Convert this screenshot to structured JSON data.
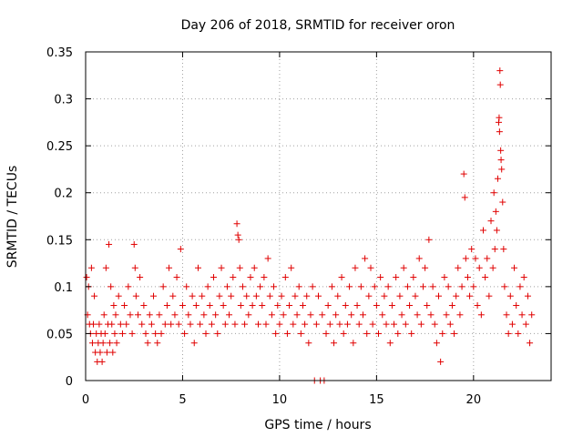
{
  "chart_data": {
    "type": "scatter",
    "title": "Day 206 of 2018, SRMTID for receiver oron",
    "xlabel": "GPS time / hours",
    "ylabel": "SRMTID / TECUs",
    "xlim": [
      0,
      24
    ],
    "ylim": [
      0,
      0.35
    ],
    "xticks": [
      0,
      5,
      10,
      15,
      20
    ],
    "yticks": [
      0,
      0.05,
      0.1,
      0.15,
      0.2,
      0.25,
      0.3,
      0.35
    ],
    "xtick_labels": [
      "0",
      "5",
      "10",
      "15",
      "20"
    ],
    "ytick_labels": [
      "0",
      "0.05",
      "0.1",
      "0.15",
      "0.2",
      "0.25",
      "0.3",
      "0.35"
    ],
    "grid": true,
    "marker": "plus",
    "marker_color": "#e00000",
    "series": [
      {
        "name": "SRMTID",
        "points": [
          [
            0.05,
            0.11
          ],
          [
            0.1,
            0.07
          ],
          [
            0.15,
            0.1
          ],
          [
            0.2,
            0.06
          ],
          [
            0.25,
            0.05
          ],
          [
            0.3,
            0.12
          ],
          [
            0.35,
            0.04
          ],
          [
            0.4,
            0.06
          ],
          [
            0.45,
            0.09
          ],
          [
            0.5,
            0.03
          ],
          [
            0.55,
            0.05
          ],
          [
            0.6,
            0.02
          ],
          [
            0.65,
            0.04
          ],
          [
            0.7,
            0.06
          ],
          [
            0.75,
            0.03
          ],
          [
            0.8,
            0.05
          ],
          [
            0.85,
            0.02
          ],
          [
            0.9,
            0.04
          ],
          [
            0.95,
            0.07
          ],
          [
            1.0,
            0.05
          ],
          [
            1.05,
            0.12
          ],
          [
            1.1,
            0.03
          ],
          [
            1.15,
            0.06
          ],
          [
            1.2,
            0.145
          ],
          [
            1.25,
            0.04
          ],
          [
            1.3,
            0.1
          ],
          [
            1.35,
            0.06
          ],
          [
            1.4,
            0.03
          ],
          [
            1.45,
            0.08
          ],
          [
            1.5,
            0.05
          ],
          [
            1.55,
            0.07
          ],
          [
            1.6,
            0.04
          ],
          [
            1.7,
            0.09
          ],
          [
            1.8,
            0.06
          ],
          [
            1.9,
            0.05
          ],
          [
            2.0,
            0.08
          ],
          [
            2.1,
            0.06
          ],
          [
            2.2,
            0.1
          ],
          [
            2.3,
            0.07
          ],
          [
            2.4,
            0.05
          ],
          [
            2.5,
            0.145
          ],
          [
            2.55,
            0.12
          ],
          [
            2.6,
            0.09
          ],
          [
            2.7,
            0.07
          ],
          [
            2.8,
            0.11
          ],
          [
            2.9,
            0.06
          ],
          [
            3.0,
            0.08
          ],
          [
            3.1,
            0.05
          ],
          [
            3.2,
            0.04
          ],
          [
            3.3,
            0.07
          ],
          [
            3.4,
            0.06
          ],
          [
            3.5,
            0.09
          ],
          [
            3.6,
            0.05
          ],
          [
            3.7,
            0.04
          ],
          [
            3.8,
            0.07
          ],
          [
            3.9,
            0.05
          ],
          [
            4.0,
            0.1
          ],
          [
            4.1,
            0.06
          ],
          [
            4.2,
            0.08
          ],
          [
            4.3,
            0.12
          ],
          [
            4.4,
            0.06
          ],
          [
            4.5,
            0.09
          ],
          [
            4.6,
            0.07
          ],
          [
            4.7,
            0.11
          ],
          [
            4.8,
            0.06
          ],
          [
            4.9,
            0.14
          ],
          [
            5.0,
            0.08
          ],
          [
            5.1,
            0.05
          ],
          [
            5.2,
            0.1
          ],
          [
            5.3,
            0.07
          ],
          [
            5.4,
            0.06
          ],
          [
            5.5,
            0.09
          ],
          [
            5.6,
            0.04
          ],
          [
            5.7,
            0.08
          ],
          [
            5.8,
            0.12
          ],
          [
            5.9,
            0.06
          ],
          [
            6.0,
            0.09
          ],
          [
            6.1,
            0.07
          ],
          [
            6.2,
            0.05
          ],
          [
            6.3,
            0.1
          ],
          [
            6.4,
            0.08
          ],
          [
            6.5,
            0.06
          ],
          [
            6.6,
            0.11
          ],
          [
            6.7,
            0.07
          ],
          [
            6.8,
            0.05
          ],
          [
            6.9,
            0.09
          ],
          [
            7.0,
            0.12
          ],
          [
            7.1,
            0.08
          ],
          [
            7.2,
            0.06
          ],
          [
            7.3,
            0.1
          ],
          [
            7.4,
            0.07
          ],
          [
            7.5,
            0.09
          ],
          [
            7.6,
            0.11
          ],
          [
            7.7,
            0.06
          ],
          [
            7.8,
            0.167
          ],
          [
            7.85,
            0.155
          ],
          [
            7.9,
            0.15
          ],
          [
            7.95,
            0.12
          ],
          [
            8.0,
            0.08
          ],
          [
            8.1,
            0.1
          ],
          [
            8.2,
            0.06
          ],
          [
            8.3,
            0.09
          ],
          [
            8.4,
            0.07
          ],
          [
            8.5,
            0.11
          ],
          [
            8.6,
            0.08
          ],
          [
            8.7,
            0.12
          ],
          [
            8.8,
            0.09
          ],
          [
            8.9,
            0.06
          ],
          [
            9.0,
            0.1
          ],
          [
            9.1,
            0.08
          ],
          [
            9.2,
            0.11
          ],
          [
            9.3,
            0.06
          ],
          [
            9.4,
            0.13
          ],
          [
            9.5,
            0.09
          ],
          [
            9.6,
            0.07
          ],
          [
            9.7,
            0.1
          ],
          [
            9.8,
            0.05
          ],
          [
            9.9,
            0.08
          ],
          [
            10.0,
            0.06
          ],
          [
            10.1,
            0.09
          ],
          [
            10.2,
            0.07
          ],
          [
            10.3,
            0.11
          ],
          [
            10.4,
            0.05
          ],
          [
            10.5,
            0.08
          ],
          [
            10.6,
            0.12
          ],
          [
            10.7,
            0.06
          ],
          [
            10.8,
            0.09
          ],
          [
            10.9,
            0.07
          ],
          [
            11.0,
            0.1
          ],
          [
            11.1,
            0.05
          ],
          [
            11.2,
            0.08
          ],
          [
            11.3,
            0.06
          ],
          [
            11.4,
            0.09
          ],
          [
            11.5,
            0.04
          ],
          [
            11.6,
            0.07
          ],
          [
            11.7,
            0.1
          ],
          [
            11.8,
            0.0
          ],
          [
            11.9,
            0.06
          ],
          [
            12.0,
            0.09
          ],
          [
            12.1,
            0.0
          ],
          [
            12.2,
            0.07
          ],
          [
            12.3,
            0.0
          ],
          [
            12.4,
            0.05
          ],
          [
            12.5,
            0.08
          ],
          [
            12.6,
            0.06
          ],
          [
            12.7,
            0.1
          ],
          [
            12.8,
            0.04
          ],
          [
            12.9,
            0.07
          ],
          [
            13.0,
            0.09
          ],
          [
            13.1,
            0.06
          ],
          [
            13.2,
            0.11
          ],
          [
            13.3,
            0.05
          ],
          [
            13.4,
            0.08
          ],
          [
            13.5,
            0.06
          ],
          [
            13.6,
            0.1
          ],
          [
            13.7,
            0.07
          ],
          [
            13.8,
            0.04
          ],
          [
            13.9,
            0.12
          ],
          [
            14.0,
            0.08
          ],
          [
            14.1,
            0.06
          ],
          [
            14.2,
            0.1
          ],
          [
            14.3,
            0.07
          ],
          [
            14.4,
            0.13
          ],
          [
            14.5,
            0.05
          ],
          [
            14.6,
            0.09
          ],
          [
            14.7,
            0.12
          ],
          [
            14.8,
            0.06
          ],
          [
            14.9,
            0.1
          ],
          [
            15.0,
            0.08
          ],
          [
            15.1,
            0.05
          ],
          [
            15.2,
            0.11
          ],
          [
            15.3,
            0.07
          ],
          [
            15.4,
            0.09
          ],
          [
            15.5,
            0.06
          ],
          [
            15.6,
            0.1
          ],
          [
            15.7,
            0.04
          ],
          [
            15.8,
            0.08
          ],
          [
            15.9,
            0.06
          ],
          [
            16.0,
            0.11
          ],
          [
            16.1,
            0.05
          ],
          [
            16.2,
            0.09
          ],
          [
            16.3,
            0.07
          ],
          [
            16.4,
            0.12
          ],
          [
            16.5,
            0.06
          ],
          [
            16.6,
            0.1
          ],
          [
            16.7,
            0.08
          ],
          [
            16.8,
            0.05
          ],
          [
            16.9,
            0.11
          ],
          [
            17.0,
            0.09
          ],
          [
            17.1,
            0.07
          ],
          [
            17.2,
            0.13
          ],
          [
            17.3,
            0.06
          ],
          [
            17.4,
            0.1
          ],
          [
            17.5,
            0.12
          ],
          [
            17.6,
            0.08
          ],
          [
            17.7,
            0.15
          ],
          [
            17.8,
            0.07
          ],
          [
            17.9,
            0.1
          ],
          [
            18.0,
            0.06
          ],
          [
            18.1,
            0.04
          ],
          [
            18.2,
            0.09
          ],
          [
            18.3,
            0.02
          ],
          [
            18.4,
            0.05
          ],
          [
            18.5,
            0.11
          ],
          [
            18.6,
            0.07
          ],
          [
            18.7,
            0.1
          ],
          [
            18.8,
            0.06
          ],
          [
            18.9,
            0.08
          ],
          [
            19.0,
            0.05
          ],
          [
            19.1,
            0.09
          ],
          [
            19.2,
            0.12
          ],
          [
            19.3,
            0.07
          ],
          [
            19.4,
            0.1
          ],
          [
            19.5,
            0.22
          ],
          [
            19.55,
            0.195
          ],
          [
            19.6,
            0.13
          ],
          [
            19.7,
            0.11
          ],
          [
            19.8,
            0.09
          ],
          [
            19.9,
            0.14
          ],
          [
            20.0,
            0.1
          ],
          [
            20.1,
            0.13
          ],
          [
            20.2,
            0.08
          ],
          [
            20.3,
            0.12
          ],
          [
            20.4,
            0.07
          ],
          [
            20.5,
            0.16
          ],
          [
            20.6,
            0.11
          ],
          [
            20.7,
            0.13
          ],
          [
            20.8,
            0.09
          ],
          [
            20.9,
            0.17
          ],
          [
            21.0,
            0.12
          ],
          [
            21.05,
            0.2
          ],
          [
            21.1,
            0.14
          ],
          [
            21.15,
            0.18
          ],
          [
            21.2,
            0.16
          ],
          [
            21.25,
            0.215
          ],
          [
            21.3,
            0.275
          ],
          [
            21.32,
            0.28
          ],
          [
            21.34,
            0.265
          ],
          [
            21.36,
            0.33
          ],
          [
            21.38,
            0.315
          ],
          [
            21.4,
            0.245
          ],
          [
            21.42,
            0.235
          ],
          [
            21.45,
            0.225
          ],
          [
            21.5,
            0.19
          ],
          [
            21.55,
            0.14
          ],
          [
            21.6,
            0.1
          ],
          [
            21.7,
            0.07
          ],
          [
            21.8,
            0.05
          ],
          [
            21.9,
            0.09
          ],
          [
            22.0,
            0.06
          ],
          [
            22.1,
            0.12
          ],
          [
            22.2,
            0.08
          ],
          [
            22.3,
            0.05
          ],
          [
            22.4,
            0.1
          ],
          [
            22.5,
            0.07
          ],
          [
            22.6,
            0.11
          ],
          [
            22.7,
            0.06
          ],
          [
            22.8,
            0.09
          ],
          [
            22.9,
            0.04
          ],
          [
            23.0,
            0.07
          ]
        ]
      }
    ]
  }
}
